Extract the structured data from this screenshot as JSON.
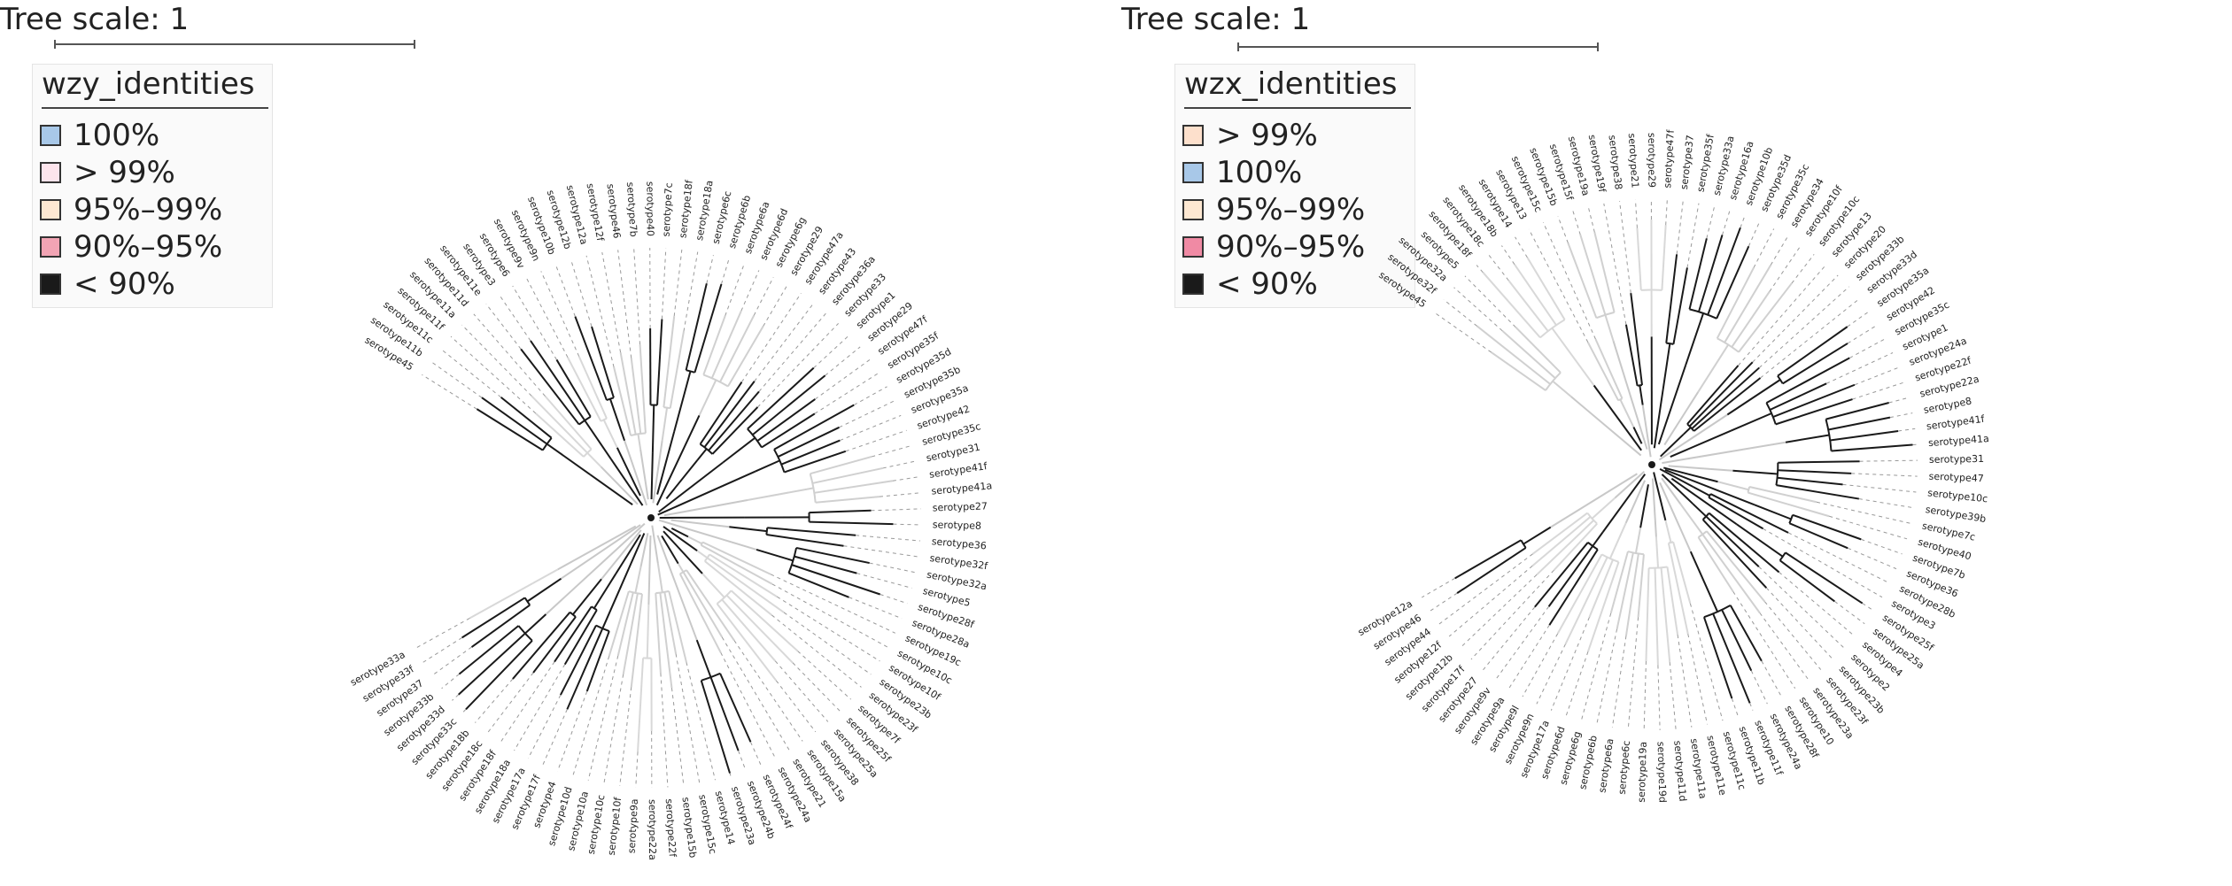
{
  "figures": [
    {
      "id": "left",
      "scale_label": "Tree scale: 1",
      "legend_title": "wzy_identities",
      "legend": [
        {
          "label": "100%",
          "color": "#a8c8e8"
        },
        {
          "label": "> 99%",
          "color": "#fde4ec"
        },
        {
          "label": "95%–99%",
          "color": "#fde8d2"
        },
        {
          "label": "90%–95%",
          "color": "#f2a4b4"
        },
        {
          "label": "< 90%",
          "color": "#1a1a1a"
        }
      ],
      "leaves": [
        "serotype45",
        "serotype11b",
        "serotype11c",
        "serotype11f",
        "serotype11a",
        "serotype11d",
        "serotype11e",
        "serotype3",
        "serotype6",
        "serotype9v",
        "serotype9n",
        "serotype10b",
        "serotype12b",
        "serotype12a",
        "serotype12f",
        "serotype46",
        "serotype7b",
        "serotype40",
        "serotype7c",
        "serotype18f",
        "serotype18a",
        "serotype6c",
        "serotype6b",
        "serotype6a",
        "serotype6d",
        "serotype6g",
        "serotype29",
        "serotype47a",
        "serotype43",
        "serotype36a",
        "serotype33",
        "serotype1",
        "serotype29",
        "serotype47f",
        "serotype35f",
        "serotype35d",
        "serotype35b",
        "serotype35a",
        "serotype42",
        "serotype35c",
        "serotype31",
        "serotype41f",
        "serotype41a",
        "serotype27",
        "serotype8",
        "serotype36",
        "serotype32f",
        "serotype32a",
        "serotype5",
        "serotype28f",
        "serotype28a",
        "serotype19c",
        "serotype10c",
        "serotype10f",
        "serotype23b",
        "serotype23f",
        "serotype7f",
        "serotype25f",
        "serotype25a",
        "serotype38",
        "serotype15a",
        "serotype21",
        "serotype24a",
        "serotype24f",
        "serotype24b",
        "serotype23a",
        "serotype14",
        "serotype15c",
        "serotype15b",
        "serotype22f",
        "serotype22a",
        "serotype9a",
        "serotype10f",
        "serotype10c",
        "serotype10a",
        "serotype10d",
        "serotype4",
        "serotype17f",
        "serotype17a",
        "serotype18a",
        "serotype18f",
        "serotype18c",
        "serotype18b",
        "serotype33c",
        "serotype33d",
        "serotype33b",
        "serotype37",
        "serotype33f",
        "serotype33a"
      ]
    },
    {
      "id": "right",
      "scale_label": "Tree scale: 1",
      "legend_title": "wzx_identities",
      "legend": [
        {
          "label": "> 99%",
          "color": "#fde0cc"
        },
        {
          "label": "100%",
          "color": "#a8c8e8"
        },
        {
          "label": "95%–99%",
          "color": "#fde8d2"
        },
        {
          "label": "90%–95%",
          "color": "#f08aa4"
        },
        {
          "label": "< 90%",
          "color": "#1a1a1a"
        }
      ],
      "leaves": [
        "serotype45",
        "serotype32f",
        "serotype32a",
        "serotype5",
        "serotype18f",
        "serotype18c",
        "serotype18b",
        "serotype14",
        "serotype13",
        "serotype15c",
        "serotype15b",
        "serotype15f",
        "serotype19a",
        "serotype19f",
        "serotype38",
        "serotype21",
        "serotype29",
        "serotype47f",
        "serotype37",
        "serotype35f",
        "serotype33a",
        "serotype16a",
        "serotype10b",
        "serotype35d",
        "serotype35c",
        "serotype34",
        "serotype10f",
        "serotype10c",
        "serotype13",
        "serotype20",
        "serotype33b",
        "serotype33d",
        "serotype35a",
        "serotype42",
        "serotype35c",
        "serotype1",
        "serotype24a",
        "serotype22f",
        "serotype22a",
        "serotype8",
        "serotype41f",
        "serotype41a",
        "serotype31",
        "serotype47",
        "serotype10c",
        "serotype39b",
        "serotype7c",
        "serotype40",
        "serotype7b",
        "serotype36",
        "serotype28b",
        "serotype3",
        "serotype25f",
        "serotype25a",
        "serotype4",
        "serotype2",
        "serotype23b",
        "serotype23f",
        "serotype23a",
        "serotype10",
        "serotype28f",
        "serotype24a",
        "serotype11f",
        "serotype11b",
        "serotype11c",
        "serotype11e",
        "serotype11a",
        "serotype11d",
        "serotype19d",
        "serotype19a",
        "serotype6c",
        "serotype6a",
        "serotype6b",
        "serotype6g",
        "serotype6d",
        "serotype17a",
        "serotype9n",
        "serotype9l",
        "serotype9a",
        "serotype9v",
        "serotype27",
        "serotype17f",
        "serotype12b",
        "serotype12f",
        "serotype44",
        "serotype46",
        "serotype12a"
      ]
    }
  ]
}
